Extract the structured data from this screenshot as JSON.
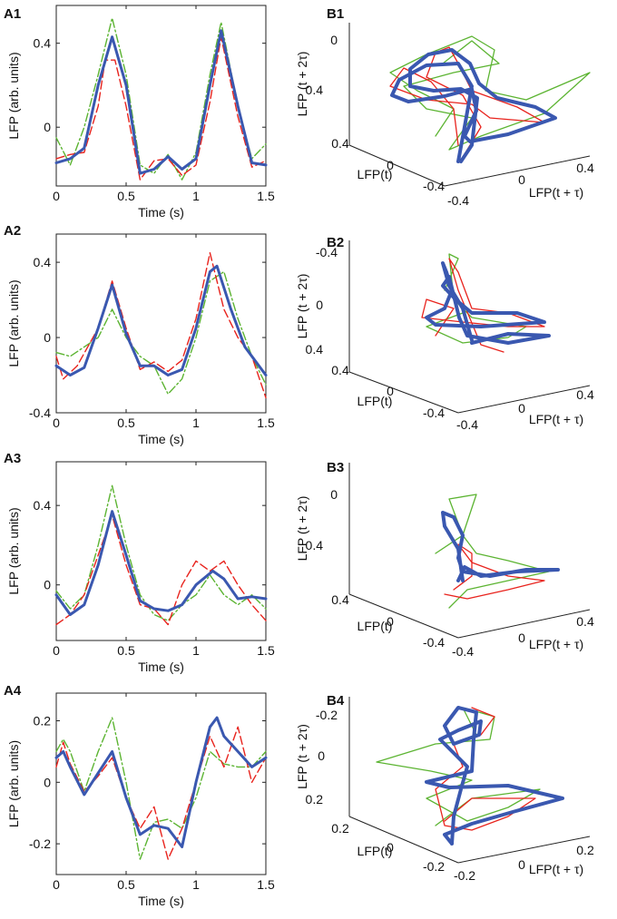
{
  "colors": {
    "blue": "#3a58b0",
    "red": "#e8231d",
    "green": "#5cb432"
  },
  "chart_data": [
    {
      "id": "A1",
      "label": "A1",
      "type": "line",
      "xlabel": "Time (s)",
      "ylabel": "LFP (arb. units)",
      "xlim": [
        0,
        1.5
      ],
      "ylim": [
        -0.28,
        0.58
      ],
      "xticks": [
        0,
        0.5,
        1,
        1.5
      ],
      "xtick_labels": [
        "0",
        "0.5",
        "1",
        "1.5"
      ],
      "yticks": [
        -0.0,
        0.4
      ],
      "ytick_labels": [
        "0",
        "0.4"
      ],
      "series": [
        {
          "name": "blue",
          "style": "solid",
          "points": [
            [
              0,
              -0.17
            ],
            [
              0.1,
              -0.15
            ],
            [
              0.2,
              -0.1
            ],
            [
              0.3,
              0.2
            ],
            [
              0.4,
              0.43
            ],
            [
              0.5,
              0.2
            ],
            [
              0.6,
              -0.22
            ],
            [
              0.7,
              -0.2
            ],
            [
              0.8,
              -0.14
            ],
            [
              0.9,
              -0.2
            ],
            [
              1.0,
              -0.15
            ],
            [
              1.1,
              0.2
            ],
            [
              1.18,
              0.46
            ],
            [
              1.3,
              0.1
            ],
            [
              1.4,
              -0.17
            ],
            [
              1.5,
              -0.18
            ]
          ]
        },
        {
          "name": "red",
          "style": "dashed",
          "points": [
            [
              0,
              -0.15
            ],
            [
              0.1,
              -0.13
            ],
            [
              0.2,
              -0.12
            ],
            [
              0.3,
              0.1
            ],
            [
              0.35,
              0.32
            ],
            [
              0.42,
              0.32
            ],
            [
              0.5,
              0.1
            ],
            [
              0.6,
              -0.25
            ],
            [
              0.7,
              -0.16
            ],
            [
              0.8,
              -0.15
            ],
            [
              0.9,
              -0.23
            ],
            [
              1.0,
              -0.18
            ],
            [
              1.1,
              0.12
            ],
            [
              1.18,
              0.43
            ],
            [
              1.3,
              0.05
            ],
            [
              1.4,
              -0.19
            ],
            [
              1.5,
              -0.16
            ]
          ]
        },
        {
          "name": "green",
          "style": "dashdot",
          "points": [
            [
              0,
              -0.05
            ],
            [
              0.1,
              -0.18
            ],
            [
              0.2,
              0.0
            ],
            [
              0.3,
              0.25
            ],
            [
              0.4,
              0.52
            ],
            [
              0.5,
              0.25
            ],
            [
              0.6,
              -0.18
            ],
            [
              0.7,
              -0.22
            ],
            [
              0.8,
              -0.13
            ],
            [
              0.9,
              -0.25
            ],
            [
              1.0,
              -0.12
            ],
            [
              1.1,
              0.25
            ],
            [
              1.18,
              0.5
            ],
            [
              1.3,
              0.1
            ],
            [
              1.4,
              -0.15
            ],
            [
              1.5,
              -0.08
            ]
          ]
        }
      ]
    },
    {
      "id": "A2",
      "label": "A2",
      "type": "line",
      "xlabel": "Time (s)",
      "ylabel": "LFP (arb. units)",
      "xlim": [
        0,
        1.5
      ],
      "ylim": [
        -0.4,
        0.55
      ],
      "xticks": [
        0,
        0.5,
        1,
        1.5
      ],
      "xtick_labels": [
        "0",
        "0.5",
        "1",
        "1.5"
      ],
      "yticks": [
        -0.4,
        0.0,
        0.4
      ],
      "ytick_labels": [
        "-0.4",
        "0",
        "0.4"
      ],
      "series": [
        {
          "name": "blue",
          "style": "solid",
          "points": [
            [
              0,
              -0.15
            ],
            [
              0.1,
              -0.2
            ],
            [
              0.2,
              -0.16
            ],
            [
              0.3,
              0.05
            ],
            [
              0.4,
              0.28
            ],
            [
              0.5,
              0.02
            ],
            [
              0.6,
              -0.15
            ],
            [
              0.7,
              -0.15
            ],
            [
              0.8,
              -0.2
            ],
            [
              0.9,
              -0.17
            ],
            [
              1.0,
              0.05
            ],
            [
              1.1,
              0.35
            ],
            [
              1.15,
              0.38
            ],
            [
              1.25,
              0.15
            ],
            [
              1.35,
              -0.05
            ],
            [
              1.45,
              -0.15
            ],
            [
              1.5,
              -0.2
            ]
          ]
        },
        {
          "name": "red",
          "style": "dashed",
          "points": [
            [
              0,
              -0.1
            ],
            [
              0.05,
              -0.22
            ],
            [
              0.15,
              -0.15
            ],
            [
              0.3,
              0.05
            ],
            [
              0.4,
              0.3
            ],
            [
              0.5,
              0.05
            ],
            [
              0.6,
              -0.17
            ],
            [
              0.7,
              -0.13
            ],
            [
              0.8,
              -0.18
            ],
            [
              0.9,
              -0.12
            ],
            [
              1.0,
              0.1
            ],
            [
              1.1,
              0.45
            ],
            [
              1.2,
              0.15
            ],
            [
              1.3,
              0.0
            ],
            [
              1.4,
              -0.1
            ],
            [
              1.5,
              -0.32
            ]
          ]
        },
        {
          "name": "green",
          "style": "dashdot",
          "points": [
            [
              0,
              -0.08
            ],
            [
              0.1,
              -0.1
            ],
            [
              0.2,
              -0.05
            ],
            [
              0.3,
              0.0
            ],
            [
              0.4,
              0.15
            ],
            [
              0.5,
              0.0
            ],
            [
              0.6,
              -0.1
            ],
            [
              0.7,
              -0.15
            ],
            [
              0.8,
              -0.3
            ],
            [
              0.9,
              -0.22
            ],
            [
              1.0,
              0.0
            ],
            [
              1.1,
              0.3
            ],
            [
              1.2,
              0.35
            ],
            [
              1.3,
              0.1
            ],
            [
              1.4,
              -0.1
            ],
            [
              1.5,
              -0.25
            ]
          ]
        }
      ]
    },
    {
      "id": "A3",
      "label": "A3",
      "type": "line",
      "xlabel": "Time (s)",
      "ylabel": "LFP (arb. units)",
      "xlim": [
        0,
        1.5
      ],
      "ylim": [
        -0.28,
        0.62
      ],
      "xticks": [
        0,
        0.5,
        1,
        1.5
      ],
      "xtick_labels": [
        "0",
        "0.5",
        "1",
        "1.5"
      ],
      "yticks": [
        -0.0,
        0.4
      ],
      "ytick_labels": [
        "0",
        "0.4"
      ],
      "series": [
        {
          "name": "blue",
          "style": "solid",
          "points": [
            [
              0,
              -0.05
            ],
            [
              0.1,
              -0.15
            ],
            [
              0.2,
              -0.1
            ],
            [
              0.3,
              0.1
            ],
            [
              0.4,
              0.37
            ],
            [
              0.5,
              0.15
            ],
            [
              0.6,
              -0.08
            ],
            [
              0.7,
              -0.12
            ],
            [
              0.8,
              -0.13
            ],
            [
              0.9,
              -0.1
            ],
            [
              1.0,
              0.0
            ],
            [
              1.12,
              0.07
            ],
            [
              1.2,
              0.03
            ],
            [
              1.3,
              -0.07
            ],
            [
              1.4,
              -0.06
            ],
            [
              1.5,
              -0.07
            ]
          ]
        },
        {
          "name": "red",
          "style": "dashed",
          "points": [
            [
              0,
              -0.2
            ],
            [
              0.1,
              -0.15
            ],
            [
              0.2,
              -0.05
            ],
            [
              0.3,
              0.15
            ],
            [
              0.4,
              0.35
            ],
            [
              0.5,
              0.1
            ],
            [
              0.6,
              -0.1
            ],
            [
              0.7,
              -0.12
            ],
            [
              0.8,
              -0.2
            ],
            [
              0.9,
              0.0
            ],
            [
              1.0,
              0.12
            ],
            [
              1.1,
              0.07
            ],
            [
              1.2,
              0.12
            ],
            [
              1.3,
              0.0
            ],
            [
              1.4,
              -0.1
            ],
            [
              1.5,
              -0.18
            ]
          ]
        },
        {
          "name": "green",
          "style": "dashdot",
          "points": [
            [
              0,
              -0.03
            ],
            [
              0.1,
              -0.12
            ],
            [
              0.2,
              -0.05
            ],
            [
              0.3,
              0.2
            ],
            [
              0.4,
              0.5
            ],
            [
              0.5,
              0.2
            ],
            [
              0.6,
              -0.05
            ],
            [
              0.7,
              -0.15
            ],
            [
              0.8,
              -0.18
            ],
            [
              0.9,
              -0.1
            ],
            [
              1.0,
              -0.05
            ],
            [
              1.1,
              0.05
            ],
            [
              1.2,
              -0.05
            ],
            [
              1.3,
              -0.1
            ],
            [
              1.4,
              -0.05
            ],
            [
              1.5,
              -0.12
            ]
          ]
        }
      ]
    },
    {
      "id": "A4",
      "label": "A4",
      "type": "line",
      "xlabel": "Time (s)",
      "ylabel": "LFP (arb. units)",
      "xlim": [
        0,
        1.5
      ],
      "ylim": [
        -0.3,
        0.29
      ],
      "xticks": [
        0,
        0.5,
        1,
        1.5
      ],
      "xtick_labels": [
        "0",
        "0.5",
        "1",
        "1.5"
      ],
      "yticks": [
        -0.2,
        0.0,
        0.2
      ],
      "ytick_labels": [
        "-0.2",
        "0",
        "0.2"
      ],
      "series": [
        {
          "name": "blue",
          "style": "solid",
          "points": [
            [
              0,
              0.08
            ],
            [
              0.05,
              0.1
            ],
            [
              0.1,
              0.05
            ],
            [
              0.2,
              -0.04
            ],
            [
              0.3,
              0.03
            ],
            [
              0.4,
              0.1
            ],
            [
              0.5,
              -0.05
            ],
            [
              0.6,
              -0.17
            ],
            [
              0.7,
              -0.14
            ],
            [
              0.8,
              -0.15
            ],
            [
              0.9,
              -0.21
            ],
            [
              1.0,
              0.0
            ],
            [
              1.1,
              0.18
            ],
            [
              1.15,
              0.21
            ],
            [
              1.2,
              0.15
            ],
            [
              1.3,
              0.1
            ],
            [
              1.4,
              0.05
            ],
            [
              1.5,
              0.08
            ]
          ]
        },
        {
          "name": "red",
          "style": "dashed",
          "points": [
            [
              0,
              0.05
            ],
            [
              0.05,
              0.13
            ],
            [
              0.1,
              0.06
            ],
            [
              0.2,
              -0.03
            ],
            [
              0.3,
              0.02
            ],
            [
              0.4,
              0.08
            ],
            [
              0.5,
              -0.05
            ],
            [
              0.6,
              -0.15
            ],
            [
              0.7,
              -0.08
            ],
            [
              0.8,
              -0.25
            ],
            [
              0.9,
              -0.15
            ],
            [
              1.0,
              0.0
            ],
            [
              1.1,
              0.15
            ],
            [
              1.2,
              0.05
            ],
            [
              1.3,
              0.18
            ],
            [
              1.4,
              0.0
            ],
            [
              1.5,
              0.08
            ]
          ]
        },
        {
          "name": "green",
          "style": "dashdot",
          "points": [
            [
              0,
              0.1
            ],
            [
              0.05,
              0.14
            ],
            [
              0.1,
              0.1
            ],
            [
              0.2,
              -0.03
            ],
            [
              0.3,
              0.1
            ],
            [
              0.4,
              0.21
            ],
            [
              0.5,
              0.0
            ],
            [
              0.6,
              -0.25
            ],
            [
              0.7,
              -0.13
            ],
            [
              0.8,
              -0.12
            ],
            [
              0.9,
              -0.15
            ],
            [
              1.0,
              -0.05
            ],
            [
              1.1,
              0.1
            ],
            [
              1.2,
              0.06
            ],
            [
              1.3,
              0.05
            ],
            [
              1.4,
              0.05
            ],
            [
              1.5,
              0.1
            ]
          ]
        }
      ]
    },
    {
      "id": "B1",
      "label": "B1",
      "type": "line3d",
      "xlabel": "LFP(t)",
      "ylabel": "LFP(t + τ)",
      "zlabel": "LFP (t + 2τ)",
      "range": [
        -0.4,
        0.4
      ],
      "ticks": [
        -0.4,
        0,
        0.4
      ],
      "tick_labels": [
        "-0.4",
        "0",
        "0.4"
      ],
      "z_ticks": [
        0,
        0.4
      ],
      "z_tick_labels": [
        "0",
        "0.4"
      ]
    },
    {
      "id": "B2",
      "label": "B2",
      "type": "line3d",
      "xlabel": "LFP(t)",
      "ylabel": "LFP(t + τ)",
      "zlabel": "LFP (t + 2τ)",
      "range": [
        -0.4,
        0.4
      ],
      "ticks": [
        -0.4,
        0,
        0.4
      ],
      "tick_labels": [
        "-0.4",
        "0",
        "0.4"
      ],
      "z_ticks": [
        -0.4,
        0,
        0.4
      ],
      "z_tick_labels": [
        "-0.4",
        "0",
        "0.4"
      ]
    },
    {
      "id": "B3",
      "label": "B3",
      "type": "line3d",
      "xlabel": "LFP(t)",
      "ylabel": "LFP(t + τ)",
      "zlabel": "LFP (t + 2τ)",
      "range": [
        -0.4,
        0.4
      ],
      "ticks": [
        -0.4,
        0,
        0.4
      ],
      "tick_labels": [
        "-0.4",
        "0",
        "0.4"
      ],
      "z_ticks": [
        0,
        0.4
      ],
      "z_tick_labels": [
        "0",
        "0.4"
      ]
    },
    {
      "id": "B4",
      "label": "B4",
      "type": "line3d",
      "xlabel": "LFP(t)",
      "ylabel": "LFP(t + τ)",
      "zlabel": "LFP (t + 2τ)",
      "range": [
        -0.2,
        0.2
      ],
      "ticks": [
        -0.2,
        0,
        0.2
      ],
      "tick_labels": [
        "-0.2",
        "0",
        "0.2"
      ],
      "z_ticks": [
        -0.2,
        0,
        0.2
      ],
      "z_tick_labels": [
        "-0.2",
        "0",
        "0.2"
      ]
    }
  ]
}
